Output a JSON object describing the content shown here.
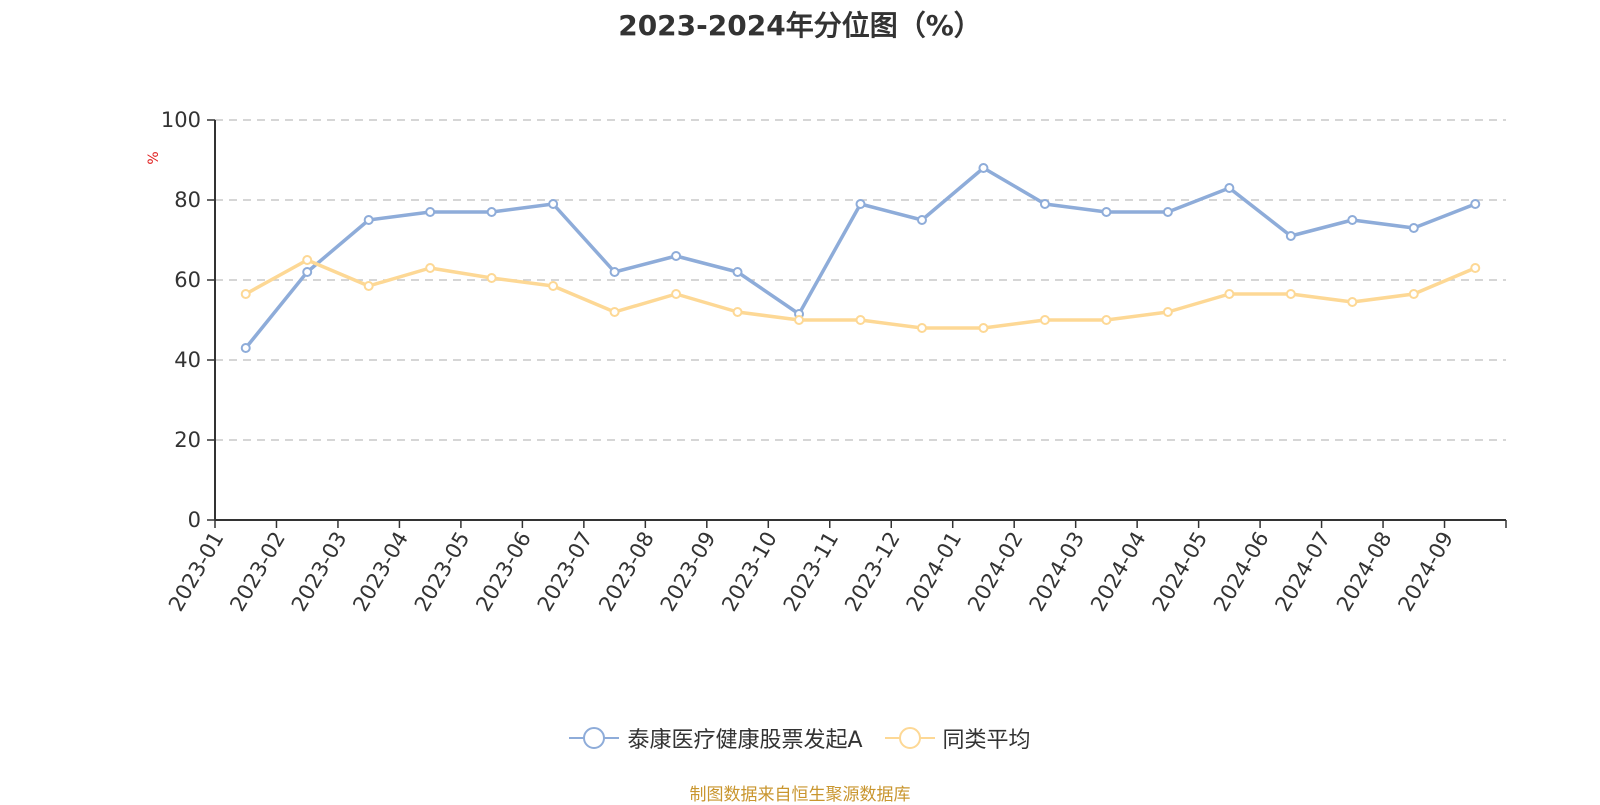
{
  "title": "2023-2024年分位图（%）",
  "source": "制图数据来自恒生聚源数据库",
  "legend": [
    {
      "label": "泰康医疗健康股票发起A",
      "color": "#8eacd9"
    },
    {
      "label": "同类平均",
      "color": "#fdd895"
    }
  ],
  "chart_data": {
    "type": "line",
    "title": "2023-2024年分位图（%）",
    "xlabel": "",
    "ylabel": "%",
    "ylim": [
      0,
      100
    ],
    "yticks": [
      0,
      20,
      40,
      60,
      80,
      100
    ],
    "grid": true,
    "legend_position": "bottom",
    "categories": [
      "2023-01",
      "2023-02",
      "2023-03",
      "2023-04",
      "2023-05",
      "2023-06",
      "2023-07",
      "2023-08",
      "2023-09",
      "2023-10",
      "2023-11",
      "2023-12",
      "2024-01",
      "2024-02",
      "2024-03",
      "2024-04",
      "2024-05",
      "2024-06",
      "2024-07",
      "2024-08",
      "2024-09"
    ],
    "series": [
      {
        "name": "泰康医疗健康股票发起A",
        "color": "#8eacd9",
        "values": [
          43,
          62,
          75,
          77,
          77,
          79,
          62,
          66,
          62,
          51.5,
          79,
          75,
          88,
          79,
          77,
          77,
          83,
          71,
          75,
          73,
          79
        ]
      },
      {
        "name": "同类平均",
        "color": "#fdd895",
        "values": [
          56.5,
          65,
          58.5,
          63,
          60.5,
          58.5,
          52,
          56.5,
          52,
          50,
          50,
          48,
          48,
          50,
          50,
          52,
          56.5,
          56.5,
          54.5,
          56.5,
          63
        ]
      }
    ]
  }
}
